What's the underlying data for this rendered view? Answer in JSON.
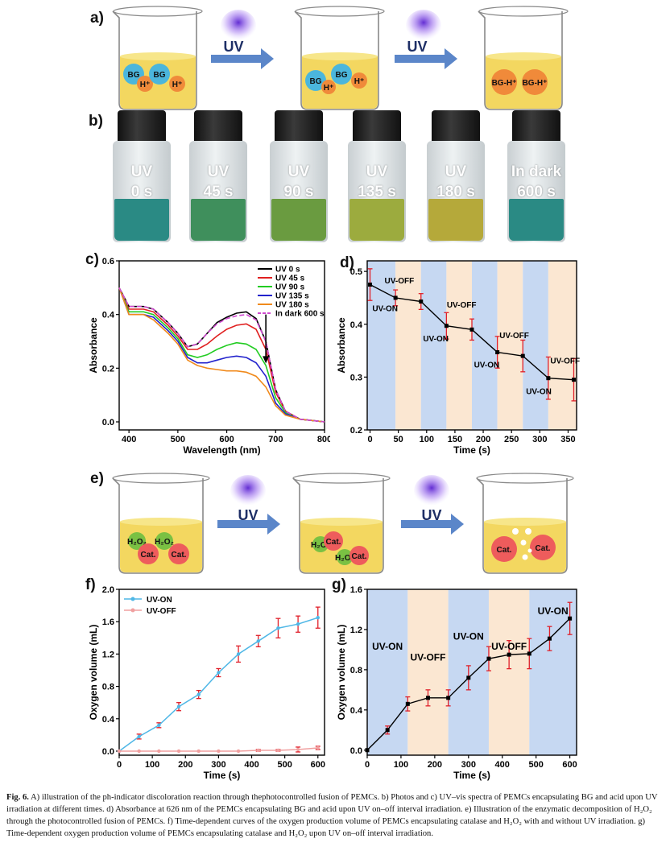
{
  "panels": {
    "a": {
      "label": "a)",
      "uv_label": "UV",
      "beaker1": [
        "BG",
        "H⁺",
        "BG",
        "H⁺"
      ],
      "beaker2": [
        "BG",
        "H⁺",
        "BG",
        "H⁺"
      ],
      "beaker3": [
        "BG-H⁺",
        "BG-H⁺"
      ]
    },
    "b": {
      "label": "b)",
      "vials": [
        {
          "line1": "UV",
          "line2": "0 s",
          "liquid": "#2a8a84"
        },
        {
          "line1": "UV",
          "line2": "45 s",
          "liquid": "#3f8f5c"
        },
        {
          "line1": "UV",
          "line2": "90 s",
          "liquid": "#6a9b40"
        },
        {
          "line1": "UV",
          "line2": "135 s",
          "liquid": "#9cab3e"
        },
        {
          "line1": "UV",
          "line2": "180 s",
          "liquid": "#b5a93a"
        },
        {
          "line1": "In dark",
          "line2": "600 s",
          "liquid": "#2a8a84"
        }
      ]
    },
    "c": {
      "label": "c)"
    },
    "d": {
      "label": "d)",
      "annotations": [
        "UV-ON",
        "UV-OFF",
        "UV-ON",
        "UV-OFF",
        "UV-ON",
        "UV-OFF",
        "UV-ON",
        "UV-OFF"
      ]
    },
    "e": {
      "label": "e)",
      "uv_label": "UV",
      "beaker1": [
        "H₂O₂",
        "H₂O₂",
        "Cat.",
        "Cat."
      ],
      "beaker2": [
        "H₂O₂",
        "Cat.",
        "H₂O₂",
        "Cat."
      ],
      "beaker3": [
        "Cat.",
        "Cat."
      ]
    },
    "f": {
      "label": "f)"
    },
    "g": {
      "label": "g)",
      "annotations": [
        "UV-ON",
        "UV-OFF",
        "UV-ON",
        "UV-OFF",
        "UV-ON"
      ]
    }
  },
  "colors": {
    "bg_yellow": "#f3d760",
    "bubble_blue": "#4bb6dc",
    "bubble_orange": "#f08a3a",
    "bubble_green": "#7ac143",
    "bubble_red": "#ee5c5c",
    "arrow": "#5b86c9",
    "band_blue": "#c6d8f2",
    "band_peach": "#fbe7d2"
  },
  "chart_data": [
    {
      "id": "c",
      "type": "line",
      "xlabel": "Wavelength (nm)",
      "ylabel": "Absorbance",
      "xlim": [
        380,
        800
      ],
      "ylim": [
        -0.03,
        0.6
      ],
      "xticks": [
        400,
        500,
        600,
        700,
        800
      ],
      "yticks": [
        0.0,
        0.2,
        0.4,
        0.6
      ],
      "ytick_labels": [
        "0.0",
        "0.2",
        "0.4",
        "0.6"
      ],
      "legend": "top-right",
      "series": [
        {
          "name": "UV 0 s",
          "color": "#000000",
          "dash": "",
          "x": [
            380,
            400,
            430,
            450,
            480,
            500,
            520,
            540,
            560,
            580,
            600,
            620,
            640,
            660,
            680,
            700,
            720,
            750,
            800
          ],
          "y": [
            0.5,
            0.43,
            0.43,
            0.42,
            0.37,
            0.33,
            0.28,
            0.29,
            0.33,
            0.37,
            0.39,
            0.405,
            0.41,
            0.385,
            0.3,
            0.12,
            0.04,
            0.01,
            0.0
          ]
        },
        {
          "name": "UV 45 s",
          "color": "#e02020",
          "dash": "",
          "x": [
            380,
            400,
            430,
            450,
            480,
            500,
            520,
            540,
            560,
            580,
            600,
            620,
            640,
            660,
            680,
            700,
            720,
            750,
            800
          ],
          "y": [
            0.5,
            0.42,
            0.42,
            0.41,
            0.36,
            0.32,
            0.27,
            0.27,
            0.29,
            0.32,
            0.345,
            0.36,
            0.365,
            0.345,
            0.27,
            0.11,
            0.04,
            0.01,
            0.0
          ]
        },
        {
          "name": "UV 90 s",
          "color": "#22cc22",
          "dash": "",
          "x": [
            380,
            400,
            430,
            450,
            480,
            500,
            520,
            540,
            560,
            580,
            600,
            620,
            640,
            660,
            680,
            700,
            720,
            750,
            800
          ],
          "y": [
            0.5,
            0.41,
            0.41,
            0.4,
            0.35,
            0.31,
            0.25,
            0.24,
            0.25,
            0.27,
            0.285,
            0.295,
            0.29,
            0.27,
            0.21,
            0.09,
            0.035,
            0.01,
            0.0
          ]
        },
        {
          "name": "UV 135 s",
          "color": "#2222cc",
          "dash": "",
          "x": [
            380,
            400,
            430,
            450,
            480,
            500,
            520,
            540,
            560,
            580,
            600,
            620,
            640,
            660,
            680,
            700,
            720,
            750,
            800
          ],
          "y": [
            0.5,
            0.4,
            0.4,
            0.39,
            0.34,
            0.3,
            0.24,
            0.22,
            0.22,
            0.23,
            0.24,
            0.245,
            0.24,
            0.22,
            0.17,
            0.07,
            0.03,
            0.01,
            0.0
          ]
        },
        {
          "name": "UV 180 s",
          "color": "#f08a1c",
          "dash": "",
          "x": [
            380,
            400,
            430,
            450,
            480,
            500,
            520,
            540,
            560,
            580,
            600,
            620,
            640,
            660,
            680,
            700,
            720,
            750,
            800
          ],
          "y": [
            0.5,
            0.4,
            0.4,
            0.38,
            0.33,
            0.29,
            0.23,
            0.21,
            0.2,
            0.195,
            0.19,
            0.19,
            0.185,
            0.17,
            0.13,
            0.06,
            0.025,
            0.01,
            0.0
          ]
        },
        {
          "name": "In dark 600 s",
          "color": "#d04ad0",
          "dash": "6,3",
          "x": [
            380,
            400,
            430,
            450,
            480,
            500,
            520,
            540,
            560,
            580,
            600,
            620,
            640,
            660,
            680,
            700,
            720,
            750,
            800
          ],
          "y": [
            0.5,
            0.43,
            0.43,
            0.42,
            0.37,
            0.33,
            0.28,
            0.29,
            0.33,
            0.365,
            0.385,
            0.395,
            0.4,
            0.38,
            0.3,
            0.12,
            0.04,
            0.01,
            0.0
          ]
        }
      ],
      "annotations": [
        "arrow at 680 nm pointing downward"
      ]
    },
    {
      "id": "d",
      "type": "line",
      "xlabel": "Time (s)",
      "ylabel": "Absorbance",
      "xlim": [
        -5,
        365
      ],
      "ylim": [
        0.2,
        0.52
      ],
      "xticks": [
        0,
        50,
        100,
        150,
        200,
        250,
        300,
        350
      ],
      "yticks": [
        0.2,
        0.3,
        0.4,
        0.5
      ],
      "ytick_labels": [
        "0.2",
        "0.3",
        "0.4",
        "0.5"
      ],
      "bands": [
        [
          -5,
          45,
          "blue"
        ],
        [
          45,
          90,
          "peach"
        ],
        [
          90,
          135,
          "blue"
        ],
        [
          135,
          180,
          "peach"
        ],
        [
          180,
          225,
          "blue"
        ],
        [
          225,
          270,
          "peach"
        ],
        [
          270,
          315,
          "blue"
        ],
        [
          315,
          365,
          "peach"
        ]
      ],
      "series": [
        {
          "name": "Absorbance",
          "x": [
            0,
            45,
            90,
            135,
            180,
            225,
            270,
            315,
            360
          ],
          "y": [
            0.475,
            0.45,
            0.443,
            0.397,
            0.39,
            0.347,
            0.34,
            0.298,
            0.295
          ],
          "err": [
            0.03,
            0.015,
            0.015,
            0.025,
            0.02,
            0.03,
            0.03,
            0.04,
            0.04
          ]
        }
      ]
    },
    {
      "id": "f",
      "type": "line",
      "xlabel": "Time (s)",
      "ylabel": "Oxygen volume (mL)",
      "xlim": [
        0,
        620
      ],
      "ylim": [
        -0.05,
        2.0
      ],
      "xticks": [
        0,
        100,
        200,
        300,
        400,
        500,
        600
      ],
      "yticks": [
        0.0,
        0.4,
        0.8,
        1.2,
        1.6,
        2.0
      ],
      "ytick_labels": [
        "0.0",
        "0.4",
        "0.8",
        "1.2",
        "1.6",
        "2.0"
      ],
      "legend": "top-left",
      "series": [
        {
          "name": "UV-ON",
          "color": "#4fb7e6",
          "x": [
            0,
            60,
            120,
            180,
            240,
            300,
            360,
            420,
            480,
            540,
            600
          ],
          "y": [
            0.0,
            0.18,
            0.32,
            0.55,
            0.7,
            0.97,
            1.2,
            1.36,
            1.52,
            1.57,
            1.65
          ],
          "err": [
            0.0,
            0.03,
            0.03,
            0.05,
            0.05,
            0.05,
            0.1,
            0.07,
            0.12,
            0.1,
            0.13
          ]
        },
        {
          "name": "UV-OFF",
          "color": "#f0a0a0",
          "x": [
            0,
            60,
            120,
            180,
            240,
            300,
            360,
            420,
            480,
            540,
            600
          ],
          "y": [
            0.0,
            0.0,
            0.0,
            0.0,
            0.0,
            0.0,
            0.0,
            0.01,
            0.01,
            0.02,
            0.04
          ],
          "err": [
            0,
            0,
            0,
            0,
            0,
            0,
            0,
            0.01,
            0.01,
            0.03,
            0.02
          ]
        }
      ]
    },
    {
      "id": "g",
      "type": "line",
      "xlabel": "Time (s)",
      "ylabel": "Oxygen volume (mL)",
      "xlim": [
        0,
        620
      ],
      "ylim": [
        -0.05,
        1.6
      ],
      "xticks": [
        0,
        100,
        200,
        300,
        400,
        500,
        600
      ],
      "yticks": [
        0.0,
        0.4,
        0.8,
        1.2,
        1.6
      ],
      "ytick_labels": [
        "0.0",
        "0.4",
        "0.8",
        "1.2",
        "1.6"
      ],
      "bands": [
        [
          0,
          120,
          "blue"
        ],
        [
          120,
          240,
          "peach"
        ],
        [
          240,
          360,
          "blue"
        ],
        [
          360,
          480,
          "peach"
        ],
        [
          480,
          620,
          "blue"
        ]
      ],
      "series": [
        {
          "name": "Oxygen volume",
          "x": [
            0,
            60,
            120,
            180,
            240,
            300,
            360,
            420,
            480,
            540,
            600
          ],
          "y": [
            0.0,
            0.2,
            0.46,
            0.52,
            0.52,
            0.72,
            0.91,
            0.95,
            0.96,
            1.11,
            1.31
          ],
          "err": [
            0,
            0.04,
            0.07,
            0.08,
            0.08,
            0.12,
            0.12,
            0.14,
            0.15,
            0.12,
            0.16
          ]
        }
      ]
    }
  ],
  "caption": {
    "fig": "Fig. 6.",
    "text": " A) illustration of the ph-indicator discoloration reaction through thephotocontrolled fusion of PEMCs. b) Photos and c) UV–vis spectra of PEMCs encapsulating BG and acid upon UV irradiation at different times. d) Absorbance at 626 nm of the PEMCs encapsulating BG and acid upon UV on–off interval irradiation. e) Illustration of the enzymatic decomposition of H₂O₂ through the photocontrolled fusion of PEMCs. f) Time-dependent curves of the oxygen production volume of PEMCs encapsulating catalase and H₂O₂ with and without UV irradiation. g) Time-dependent oxygen production volume of PEMCs encapsulating catalase and H₂O₂ upon UV on–off interval irradiation."
  }
}
